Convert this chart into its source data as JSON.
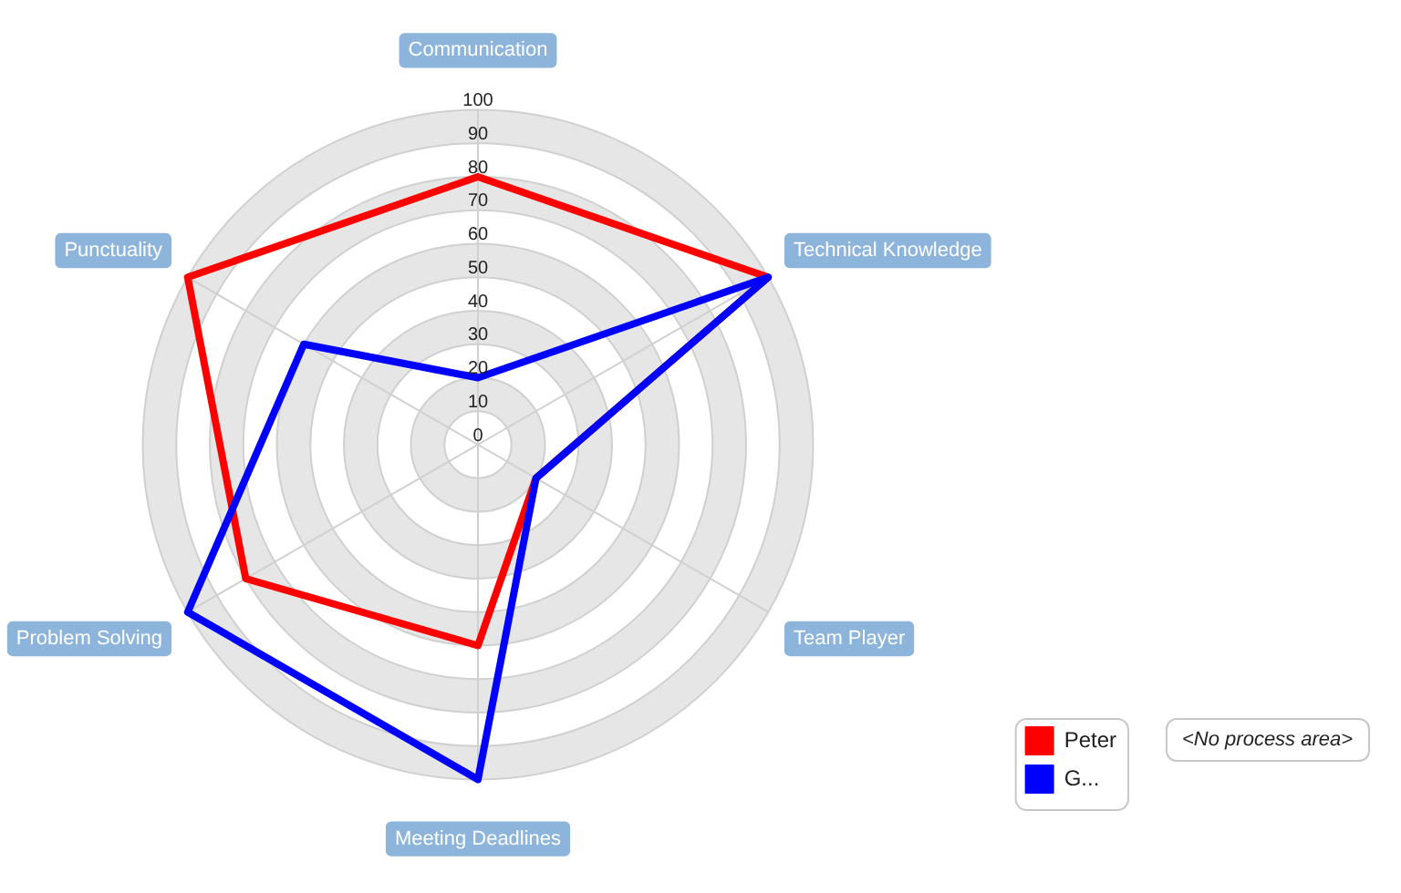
{
  "chart_data": {
    "type": "radar",
    "categories": [
      "Communication",
      "Technical Knowledge",
      "Team Player",
      "Meeting Deadlines",
      "Problem Solving",
      "Punctuality"
    ],
    "series": [
      {
        "name": "Peter",
        "color": "#ff0000",
        "values": [
          80,
          100,
          20,
          60,
          80,
          100
        ]
      },
      {
        "name": "G...",
        "color": "#0000ff",
        "values": [
          20,
          100,
          20,
          100,
          100,
          60
        ]
      }
    ],
    "ylim": [
      0,
      100
    ],
    "yticks": [
      0,
      10,
      20,
      30,
      40,
      50,
      60,
      70,
      80,
      90,
      100
    ],
    "grid": true,
    "legend": "bottom right",
    "marker": "none",
    "annotations": [
      "<No process area>"
    ]
  }
}
